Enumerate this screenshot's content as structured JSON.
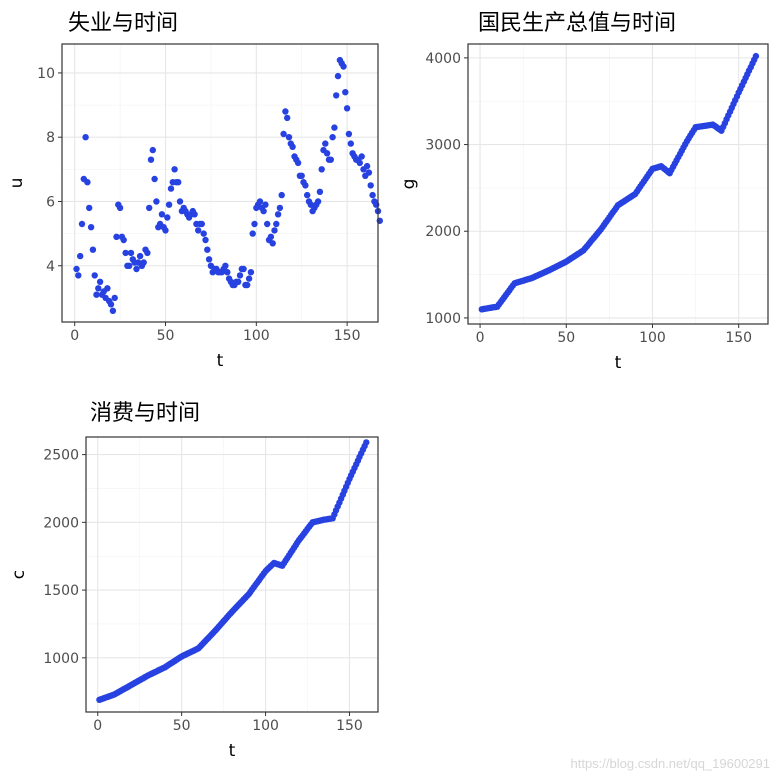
{
  "watermark": "https://blog.csdn.net/qq_19600291",
  "chart_data": [
    {
      "type": "scatter",
      "title": "失业与时间",
      "xlabel": "t",
      "ylabel": "u",
      "xlim": [
        -7,
        167
      ],
      "ylim": [
        2.25,
        10.9
      ],
      "xticks": [
        0,
        50,
        100,
        150
      ],
      "yticks": [
        4,
        6,
        8,
        10
      ],
      "grid": true,
      "legend": "none",
      "point_color": "#2742e0",
      "x_start": 1,
      "y": [
        3.9,
        3.7,
        4.3,
        5.3,
        6.7,
        8.0,
        6.6,
        5.8,
        5.2,
        4.5,
        3.7,
        3.1,
        3.3,
        3.5,
        3.1,
        3.2,
        3.0,
        3.3,
        2.9,
        2.8,
        2.6,
        3.0,
        4.9,
        5.9,
        5.8,
        4.9,
        4.8,
        4.4,
        4.0,
        4.0,
        4.4,
        4.2,
        4.1,
        3.9,
        4.1,
        4.3,
        4.0,
        4.1,
        4.5,
        4.4,
        5.8,
        7.3,
        7.6,
        6.7,
        6.0,
        5.2,
        5.3,
        5.6,
        5.2,
        5.1,
        5.5,
        5.9,
        6.4,
        6.6,
        7.0,
        6.6,
        6.6,
        6.0,
        5.7,
        5.8,
        5.7,
        5.6,
        5.5,
        5.6,
        5.7,
        5.6,
        5.3,
        5.1,
        5.3,
        5.3,
        5.0,
        4.8,
        4.5,
        4.2,
        4.0,
        3.8,
        3.9,
        3.9,
        3.8,
        3.8,
        3.8,
        3.9,
        4.0,
        3.8,
        3.6,
        3.5,
        3.4,
        3.4,
        3.5,
        3.5,
        3.7,
        3.9,
        3.9,
        3.4,
        3.4,
        3.6,
        3.8,
        5.0,
        5.3,
        5.8,
        5.9,
        6.0,
        5.8,
        5.7,
        5.9,
        5.3,
        4.8,
        4.9,
        4.7,
        5.1,
        5.3,
        5.6,
        5.8,
        6.2,
        8.1,
        8.8,
        8.6,
        8.0,
        7.8,
        7.7,
        7.4,
        7.3,
        7.2,
        6.8,
        6.8,
        6.6,
        6.5,
        6.2,
        6.0,
        5.9,
        5.7,
        5.8,
        5.9,
        6.0,
        6.3,
        7.0,
        7.6,
        7.8,
        7.5,
        7.3,
        7.3,
        8.0,
        8.3,
        9.3,
        9.9,
        10.4,
        10.3,
        10.2,
        9.4,
        8.9,
        8.1,
        7.8,
        7.5,
        7.4,
        7.3,
        7.3,
        7.2,
        7.4,
        7.0,
        6.8,
        7.1,
        6.9,
        6.5,
        6.2,
        6.0,
        5.9,
        5.7,
        5.4
      ]
    },
    {
      "type": "scatter",
      "title": "国民生产总值与时间",
      "xlabel": "t",
      "ylabel": "g",
      "xlim": [
        -7,
        167
      ],
      "ylim": [
        930,
        4160
      ],
      "xticks": [
        0,
        50,
        100,
        150
      ],
      "yticks": [
        1000,
        2000,
        3000,
        4000
      ],
      "grid": true,
      "legend": "none",
      "point_color": "#2742e0",
      "anchors": [
        [
          1,
          1100
        ],
        [
          10,
          1130
        ],
        [
          20,
          1400
        ],
        [
          30,
          1460
        ],
        [
          40,
          1550
        ],
        [
          50,
          1650
        ],
        [
          60,
          1780
        ],
        [
          70,
          2020
        ],
        [
          80,
          2300
        ],
        [
          90,
          2430
        ],
        [
          100,
          2720
        ],
        [
          105,
          2750
        ],
        [
          110,
          2670
        ],
        [
          120,
          3040
        ],
        [
          125,
          3200
        ],
        [
          135,
          3230
        ],
        [
          140,
          3160
        ],
        [
          150,
          3600
        ],
        [
          160,
          4020
        ]
      ]
    },
    {
      "type": "scatter",
      "title": "消费与时间",
      "xlabel": "t",
      "ylabel": "c",
      "xlim": [
        -7,
        167
      ],
      "ylim": [
        600,
        2630
      ],
      "xticks": [
        0,
        50,
        100,
        150
      ],
      "yticks": [
        1000,
        1500,
        2000,
        2500
      ],
      "grid": true,
      "legend": "none",
      "point_color": "#2742e0",
      "anchors": [
        [
          1,
          690
        ],
        [
          10,
          730
        ],
        [
          20,
          800
        ],
        [
          30,
          870
        ],
        [
          40,
          930
        ],
        [
          50,
          1010
        ],
        [
          60,
          1070
        ],
        [
          70,
          1200
        ],
        [
          80,
          1340
        ],
        [
          90,
          1470
        ],
        [
          100,
          1640
        ],
        [
          105,
          1700
        ],
        [
          110,
          1680
        ],
        [
          120,
          1870
        ],
        [
          128,
          2000
        ],
        [
          135,
          2020
        ],
        [
          140,
          2030
        ],
        [
          150,
          2320
        ],
        [
          160,
          2590
        ]
      ]
    }
  ]
}
